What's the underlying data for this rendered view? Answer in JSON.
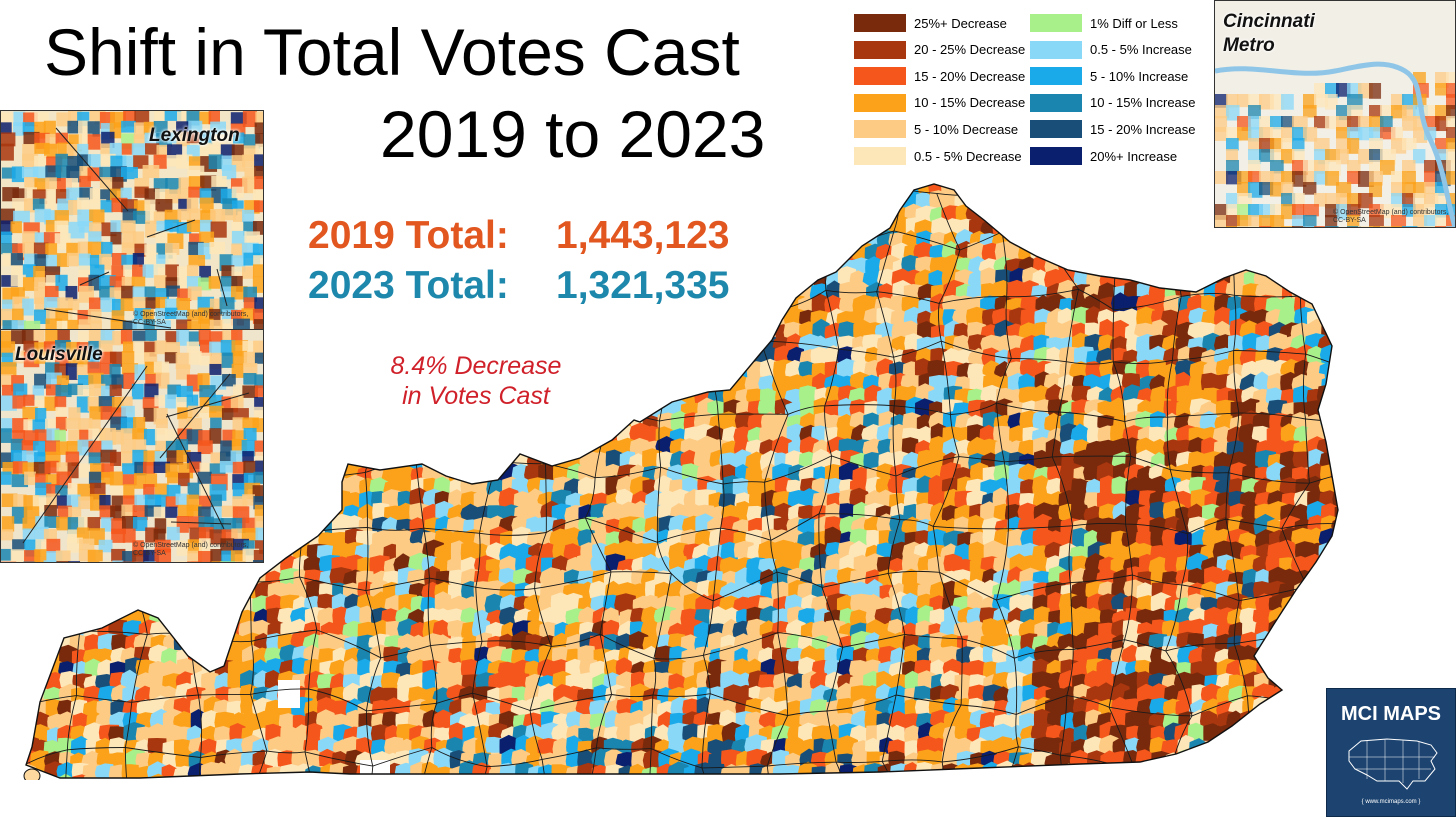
{
  "title": {
    "line1": "Shift in Total Votes Cast",
    "line2": "2019 to 2023"
  },
  "totals": {
    "t2019_label": "2019 Total:",
    "t2019_value": "1,443,123",
    "t2019_color": "#e2561f",
    "t2023_label": "2023 Total:",
    "t2023_value": "1,321,335",
    "t2023_color": "#1e88ac"
  },
  "note": {
    "line1": "8.4% Decrease",
    "line2": "in Votes Cast",
    "color": "#d0202a"
  },
  "legend": [
    {
      "label": "25%+ Decrease",
      "color": "#7a2a0c"
    },
    {
      "label": "20 - 25% Decrease",
      "color": "#a8360e"
    },
    {
      "label": "15 - 20% Decrease",
      "color": "#f4561c"
    },
    {
      "label": "10 - 15% Decrease",
      "color": "#fba21a"
    },
    {
      "label": "5 - 10% Decrease",
      "color": "#fdcb84"
    },
    {
      "label": "0.5 - 5% Decrease",
      "color": "#fde6b8"
    },
    {
      "label": "1% Diff or Less",
      "color": "#a8f08a"
    },
    {
      "label": "0.5 - 5% Increase",
      "color": "#8ad8f8"
    },
    {
      "label": "5 - 10% Increase",
      "color": "#1aaaea"
    },
    {
      "label": "10 - 15% Increase",
      "color": "#1a86b0"
    },
    {
      "label": "15 - 20% Increase",
      "color": "#184e78"
    },
    {
      "label": "20%+ Increase",
      "color": "#0a1f6e"
    }
  ],
  "insets": {
    "lexington": {
      "label": "Lexington",
      "credit": "© OpenStreetMap (and) contributors, CC-BY-SA"
    },
    "louisville": {
      "label": "Louisville",
      "credit": "© OpenStreetMap (and) contributors, CC-BY-SA"
    },
    "cincinnati": {
      "label_line1": "Cincinnati",
      "label_line2": "Metro",
      "credit": "© OpenStreetMap (and) contributors, CC-BY-SA"
    }
  },
  "logo": {
    "title": "MCI MAPS",
    "url": "{ www.mcimaps.com }",
    "bg_color": "#1d4470"
  }
}
